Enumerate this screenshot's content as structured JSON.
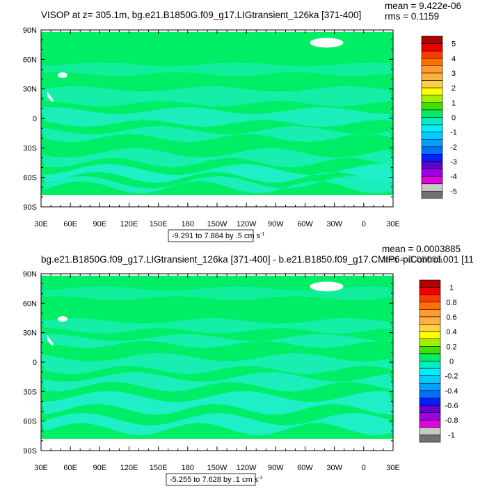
{
  "panels": [
    {
      "title": "VISOP at z= 305.1m, bg.e21.B1850G.f09_g17.LIGtransient_126ka [371-400]",
      "stats": [
        "mean = 9.422e-06",
        "rms = 0.1159"
      ],
      "range_label": "-9.291 to 7.884 by .5 cm s",
      "range_sup": "-1",
      "lat_labels": [
        "90N",
        "60N",
        "30N",
        "0",
        "30S",
        "60S",
        "90S"
      ],
      "lon_labels": [
        "30E",
        "60E",
        "90E",
        "120E",
        "150E",
        "180",
        "150W",
        "120W",
        "90W",
        "60W",
        "30W",
        "0",
        "30E"
      ],
      "colorbar_labels": [
        "5",
        "4",
        "3",
        "2",
        "1",
        "0",
        "-1",
        "-2",
        "-3",
        "-4",
        "-5"
      ]
    },
    {
      "title": "bg.e21.B1850G.f09_g17.LIGtransient_126ka [371-400] - b.e21.B1850.f09_g17.CMIP6-piControl.001 [11",
      "stats": [
        "mean = 0.0003885",
        "rms = 0.05085"
      ],
      "range_label": "-5.255 to 7.628 by .1 cm s",
      "range_sup": "-1",
      "lat_labels": [
        "90N",
        "60N",
        "30N",
        "0",
        "30S",
        "60S",
        "90S"
      ],
      "lon_labels": [
        "30E",
        "60E",
        "90E",
        "120E",
        "150E",
        "180",
        "150W",
        "120W",
        "90W",
        "60W",
        "30W",
        "0",
        "30E"
      ],
      "colorbar_labels": [
        "1",
        "0.8",
        "0.6",
        "0.4",
        "0.2",
        "0",
        "-0.2",
        "-0.4",
        "-0.6",
        "-0.8",
        "-1"
      ]
    }
  ],
  "colors": {
    "ocean_fill": "#00EE66",
    "negative_band": "#22EED0",
    "land": "#FFFFFF",
    "colorbar": [
      "#b00000",
      "#ee0000",
      "#ff3a00",
      "#ff7000",
      "#ff9a30",
      "#ffb040",
      "#ffd040",
      "#ffff00",
      "#a0f000",
      "#40e000",
      "#00ee66",
      "#00eec0",
      "#00eeff",
      "#00ccff",
      "#00a0ff",
      "#0070ff",
      "#0020ff",
      "#6000d0",
      "#a000e0",
      "#e000e0",
      "#c8c8c8",
      "#707070"
    ]
  },
  "chart_data": [
    {
      "type": "heatmap",
      "title": "VISOP at z= 305.1m, bg.e21.B1850G.f09_g17.LIGtransient_126ka [371-400]",
      "x_ticks": [
        "30E",
        "60E",
        "90E",
        "120E",
        "150E",
        "180",
        "150W",
        "120W",
        "90W",
        "60W",
        "30W",
        "0",
        "30E"
      ],
      "y_ticks": [
        "90N",
        "60N",
        "30N",
        "0",
        "30S",
        "60S",
        "90S"
      ],
      "xlim": [
        30,
        390
      ],
      "ylim": [
        -90,
        90
      ],
      "colorbar_range": [
        -5,
        5
      ],
      "colorbar_levels": [
        5,
        4,
        3,
        2,
        1,
        0,
        -1,
        -2,
        -3,
        -4,
        -5
      ],
      "mean": "9.422e-06",
      "rms": "0.1159",
      "data_range": [
        -9.291,
        7.884
      ],
      "contour_interval": 0.5,
      "units": "cm s-1"
    },
    {
      "type": "heatmap",
      "title": "bg.e21.B1850G.f09_g17.LIGtransient_126ka [371-400] - b.e21.B1850.f09_g17.CMIP6-piControl.001 [11",
      "x_ticks": [
        "30E",
        "60E",
        "90E",
        "120E",
        "150E",
        "180",
        "150W",
        "120W",
        "90W",
        "60W",
        "30W",
        "0",
        "30E"
      ],
      "y_ticks": [
        "90N",
        "60N",
        "30N",
        "0",
        "30S",
        "60S",
        "90S"
      ],
      "xlim": [
        30,
        390
      ],
      "ylim": [
        -90,
        90
      ],
      "colorbar_range": [
        -1,
        1
      ],
      "colorbar_levels": [
        1,
        0.8,
        0.6,
        0.4,
        0.2,
        0,
        -0.2,
        -0.4,
        -0.6,
        -0.8,
        -1
      ],
      "mean": "0.0003885",
      "rms": "0.05085",
      "data_range": [
        -5.255,
        7.628
      ],
      "contour_interval": 0.1,
      "units": "cm s-1"
    }
  ]
}
